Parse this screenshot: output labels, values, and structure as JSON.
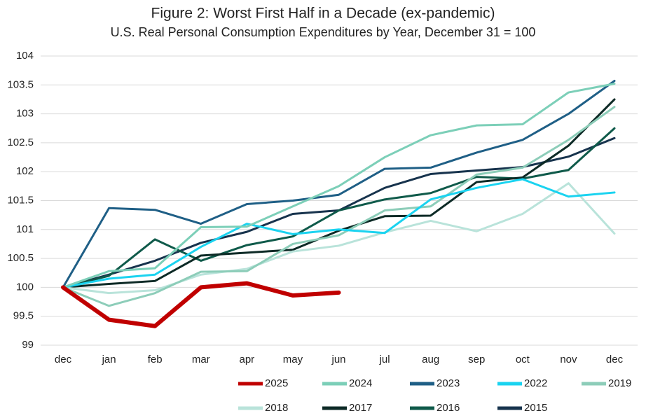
{
  "chart_data": {
    "type": "line",
    "title": "Figure 2: Worst First Half in a Decade (ex-pandemic)",
    "subtitle": "U.S. Real Personal Consumption Expenditures by Year, December 31 = 100",
    "categories": [
      "dec",
      "jan",
      "feb",
      "mar",
      "apr",
      "may",
      "jun",
      "jul",
      "aug",
      "sep",
      "oct",
      "nov",
      "dec"
    ],
    "ylim": [
      99,
      104
    ],
    "yticks": [
      99,
      99.5,
      100,
      100.5,
      101,
      101.5,
      102,
      102.5,
      103,
      103.5,
      104
    ],
    "grid": true,
    "series": [
      {
        "name": "2025",
        "color": "#c00000",
        "values": [
          100,
          99.44,
          99.33,
          100.0,
          100.07,
          99.86,
          99.91,
          null,
          null,
          null,
          null,
          null,
          null
        ]
      },
      {
        "name": "2024",
        "color": "#7ccfb8",
        "values": [
          100,
          100.28,
          100.33,
          101.04,
          101.05,
          101.4,
          101.75,
          102.25,
          102.63,
          102.8,
          102.82,
          103.37,
          103.52
        ]
      },
      {
        "name": "2023",
        "color": "#1f5f86",
        "values": [
          100,
          101.37,
          101.34,
          101.1,
          101.44,
          101.5,
          101.6,
          102.05,
          102.07,
          102.33,
          102.55,
          103.0,
          103.57
        ]
      },
      {
        "name": "2022",
        "color": "#1ad3f0",
        "values": [
          100,
          100.15,
          100.22,
          100.7,
          101.1,
          100.92,
          101.0,
          100.94,
          101.52,
          101.72,
          101.87,
          101.57,
          101.64
        ]
      },
      {
        "name": "2019",
        "color": "#8dcdb9",
        "values": [
          100,
          99.68,
          99.9,
          100.27,
          100.28,
          100.75,
          100.9,
          101.33,
          101.4,
          101.95,
          102.07,
          102.55,
          103.12
        ]
      },
      {
        "name": "2018",
        "color": "#b9e3da",
        "values": [
          100,
          99.9,
          99.95,
          100.22,
          100.32,
          100.62,
          100.72,
          100.95,
          101.15,
          100.97,
          101.27,
          101.8,
          100.93
        ]
      },
      {
        "name": "2017",
        "color": "#0d2a26",
        "values": [
          100,
          100.06,
          100.11,
          100.55,
          100.6,
          100.65,
          100.98,
          101.23,
          101.24,
          101.82,
          101.9,
          102.45,
          103.25
        ]
      },
      {
        "name": "2016",
        "color": "#0f5a4a",
        "values": [
          100,
          100.2,
          100.83,
          100.46,
          100.73,
          100.88,
          101.33,
          101.52,
          101.63,
          101.91,
          101.88,
          102.03,
          102.75
        ]
      },
      {
        "name": "2015",
        "color": "#17334d",
        "values": [
          100,
          100.22,
          100.46,
          100.77,
          100.96,
          101.27,
          101.33,
          101.72,
          101.96,
          102.02,
          102.08,
          102.26,
          102.58
        ]
      }
    ]
  }
}
